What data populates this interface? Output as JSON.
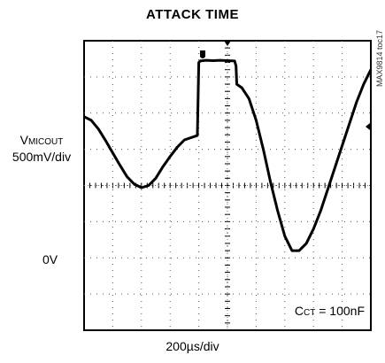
{
  "title": "ATTACK TIME",
  "ylabel_main": "V",
  "ylabel_sub": "MICOUT",
  "ylabel_scale": "500mV/div",
  "zero_label": "0V",
  "xlabel": "200µs/div",
  "annotation_main": "C",
  "annotation_sub": "CT",
  "annotation_value": " = 100nF",
  "side_id": "MAX9814 toc17",
  "chart_data": {
    "type": "line",
    "title": "ATTACK TIME",
    "xlabel": "200µs/div",
    "ylabel": "VMICOUT 500mV/div",
    "xlim": [
      0,
      2000
    ],
    "ylim": [
      -1500,
      2500
    ],
    "grid": true,
    "x_unit": "µs",
    "y_unit": "mV",
    "series": [
      {
        "x": [
          0,
          50,
          100,
          150,
          200,
          250,
          300,
          350,
          400,
          450,
          500,
          550,
          600,
          650,
          700,
          760,
          790,
          800,
          810,
          850,
          900,
          950,
          1000,
          1050,
          1060,
          1065,
          1100,
          1150,
          1200,
          1250,
          1300,
          1350,
          1400,
          1450,
          1500,
          1550,
          1600,
          1650,
          1700,
          1750,
          1800,
          1850,
          1900,
          1950,
          2000
        ],
        "y": [
          1450,
          1400,
          1280,
          1120,
          950,
          780,
          620,
          520,
          470,
          500,
          600,
          760,
          900,
          1030,
          1130,
          1170,
          1190,
          2200,
          2220,
          2230,
          2225,
          2230,
          2225,
          2220,
          2150,
          1900,
          1850,
          1700,
          1400,
          1000,
          550,
          150,
          -200,
          -400,
          -400,
          -300,
          -100,
          150,
          450,
          750,
          1050,
          1350,
          1650,
          1900,
          2100
        ]
      }
    ],
    "annotations": [
      "0V",
      "CCT = 100nF"
    ]
  }
}
